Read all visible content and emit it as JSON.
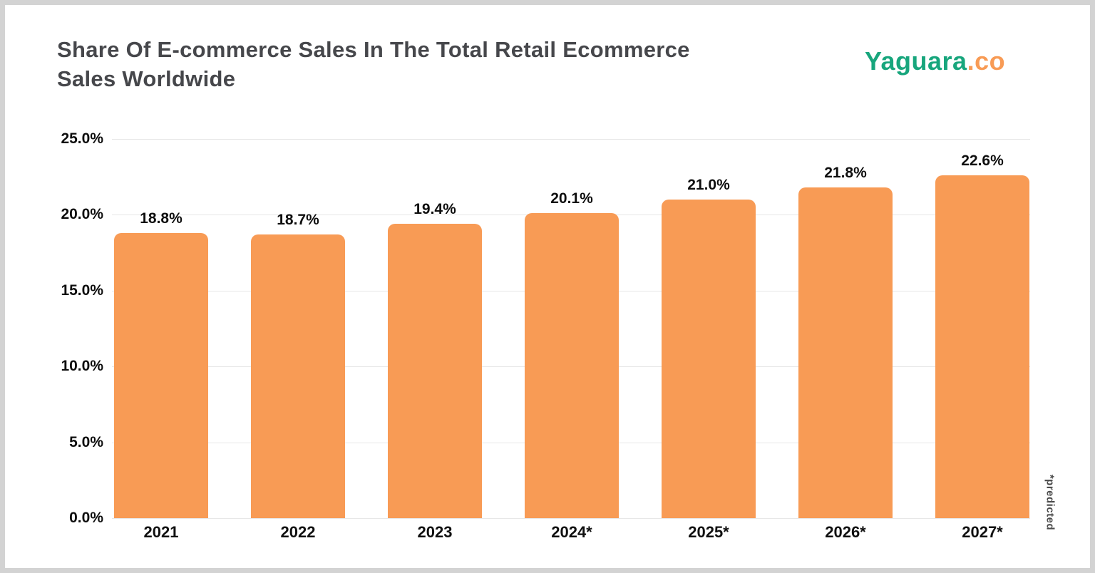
{
  "header": {
    "title": "Share Of E-commerce Sales In The Total Retail Ecommerce\nSales Worldwide"
  },
  "logo": {
    "brand": "Yaguara",
    "suffix": ".co",
    "brand_color": "#18a67d",
    "suffix_color": "#f89b55"
  },
  "chart_data": {
    "type": "bar",
    "title": "Share Of E-commerce Sales In The Total Retail Ecommerce Sales Worldwide",
    "categories": [
      "2021",
      "2022",
      "2023",
      "2024*",
      "2025*",
      "2026*",
      "2027*"
    ],
    "values": [
      18.8,
      18.7,
      19.4,
      20.1,
      21.0,
      21.8,
      22.6
    ],
    "value_labels": [
      "18.8%",
      "18.7%",
      "19.4%",
      "20.1%",
      "21.0%",
      "21.8%",
      "22.6%"
    ],
    "yticks": [
      25.0,
      20.0,
      15.0,
      10.0,
      5.0,
      0.0
    ],
    "ytick_labels": [
      "25.0%",
      "20.0%",
      "15.0%",
      "10.0%",
      "5.0%",
      "0.0%"
    ],
    "ylim": [
      0,
      25
    ],
    "xlabel": "",
    "ylabel": "",
    "grid": "horizontal",
    "legend": "none",
    "bar_color": "#f89b55",
    "gridline_color": "#e7e7e7",
    "footnote": "*predicted"
  }
}
